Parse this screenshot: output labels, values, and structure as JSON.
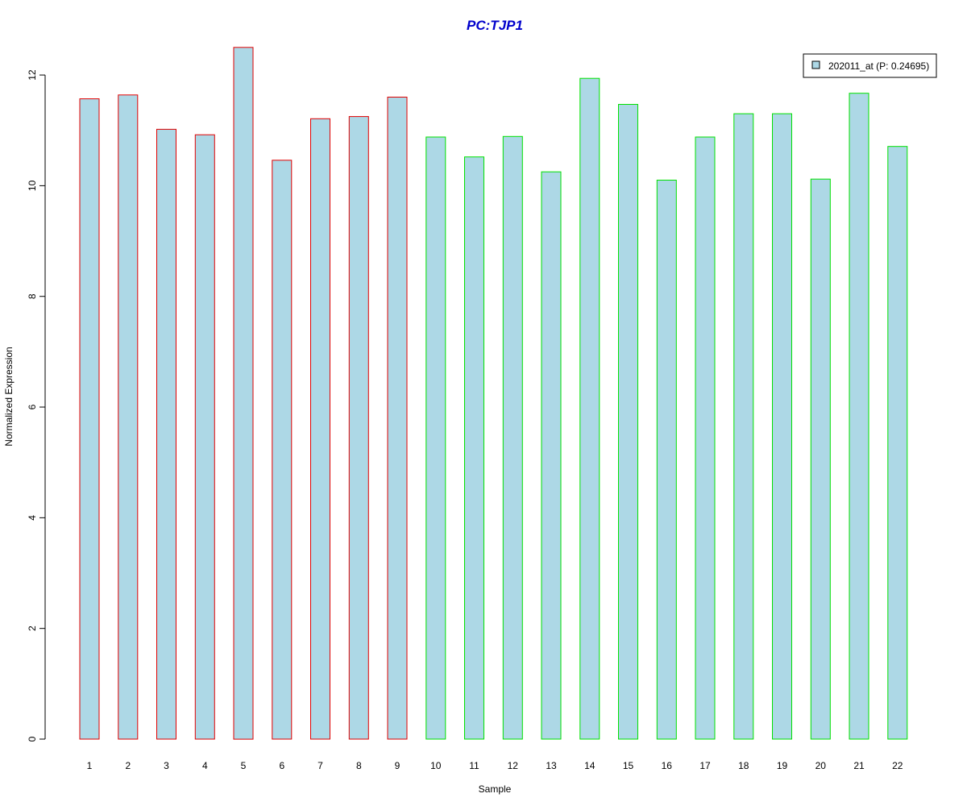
{
  "chart_data": {
    "type": "bar",
    "title": "PC:TJP1",
    "xlabel": "Sample",
    "ylabel": "Normalized Expression",
    "ylim": [
      0,
      12.5
    ],
    "yticks": [
      0,
      2,
      4,
      6,
      8,
      10,
      12
    ],
    "categories": [
      "1",
      "2",
      "3",
      "4",
      "5",
      "6",
      "7",
      "8",
      "9",
      "10",
      "11",
      "12",
      "13",
      "14",
      "15",
      "16",
      "17",
      "18",
      "19",
      "20",
      "21",
      "22"
    ],
    "values": [
      11.57,
      11.64,
      11.02,
      10.92,
      12.5,
      10.46,
      11.21,
      11.25,
      11.6,
      10.88,
      10.52,
      10.89,
      10.25,
      11.94,
      11.47,
      10.1,
      10.88,
      11.3,
      11.3,
      10.12,
      11.67,
      10.71
    ],
    "bar_border_colors": [
      "#e00000",
      "#e00000",
      "#e00000",
      "#e00000",
      "#e00000",
      "#e00000",
      "#e00000",
      "#e00000",
      "#e00000",
      "#00e000",
      "#00e000",
      "#00e000",
      "#00e000",
      "#00e000",
      "#00e000",
      "#00e000",
      "#00e000",
      "#00e000",
      "#00e000",
      "#00e000",
      "#00e000",
      "#00e000"
    ],
    "bar_fill": "#add8e6",
    "title_color": "#0000cc",
    "grid": false,
    "legend": {
      "placement": "top-right",
      "entries": [
        {
          "label": "202011_at (P: 0.24695)",
          "color": "#add8e6"
        }
      ]
    }
  }
}
